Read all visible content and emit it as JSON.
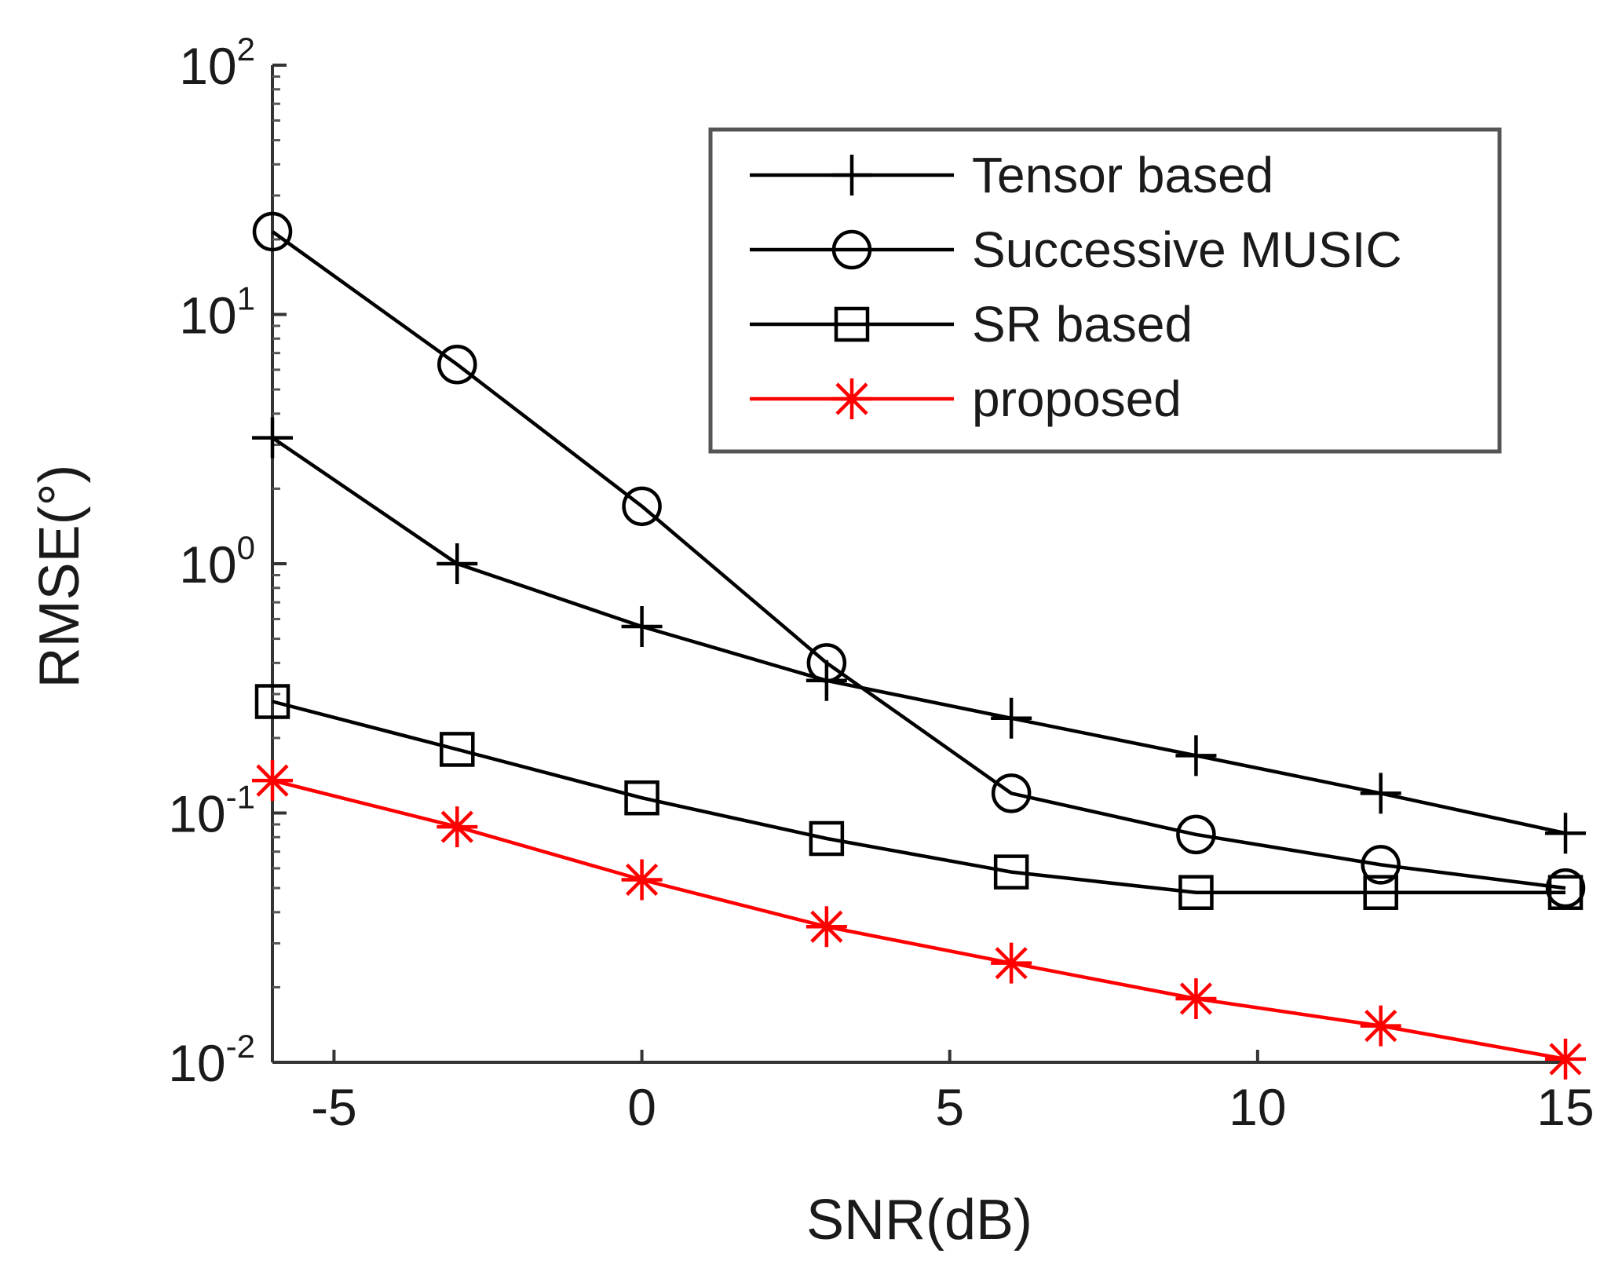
{
  "chart_data": {
    "type": "line",
    "title": "",
    "xlabel": "SNR(dB)",
    "ylabel": "RMSE(°)",
    "yscale": "log",
    "xlim": [
      -6,
      15
    ],
    "ylim": [
      0.01,
      100
    ],
    "xticks": [
      -5,
      0,
      5,
      10,
      15
    ],
    "xtick_labels": [
      "-5",
      "0",
      "5",
      "10",
      "15"
    ],
    "yticks": [
      0.01,
      0.1,
      1,
      10,
      100
    ],
    "ytick_labels": [
      {
        "base": "10",
        "exp": "-2"
      },
      {
        "base": "10",
        "exp": "-1"
      },
      {
        "base": "10",
        "exp": "0"
      },
      {
        "base": "10",
        "exp": "1"
      },
      {
        "base": "10",
        "exp": "2"
      }
    ],
    "grid": false,
    "legend_position": "top-right",
    "x": [
      -6,
      -3,
      0,
      3,
      6,
      9,
      12,
      15
    ],
    "series": [
      {
        "name": "Tensor based",
        "marker": "plus",
        "color": "#000000",
        "values": [
          3.2,
          1.0,
          0.56,
          0.34,
          0.24,
          0.17,
          0.12,
          0.083
        ]
      },
      {
        "name": "Successive MUSIC",
        "marker": "circle",
        "color": "#000000",
        "values": [
          21.5,
          6.3,
          1.7,
          0.4,
          0.12,
          0.082,
          0.062,
          0.05
        ]
      },
      {
        "name": "SR based",
        "marker": "square",
        "color": "#000000",
        "values": [
          0.28,
          0.18,
          0.115,
          0.079,
          0.058,
          0.048,
          0.048,
          0.048
        ]
      },
      {
        "name": "proposed",
        "marker": "star",
        "color": "#ff0000",
        "values": [
          0.135,
          0.088,
          0.054,
          0.035,
          0.025,
          0.018,
          0.014,
          0.0103
        ]
      }
    ]
  }
}
